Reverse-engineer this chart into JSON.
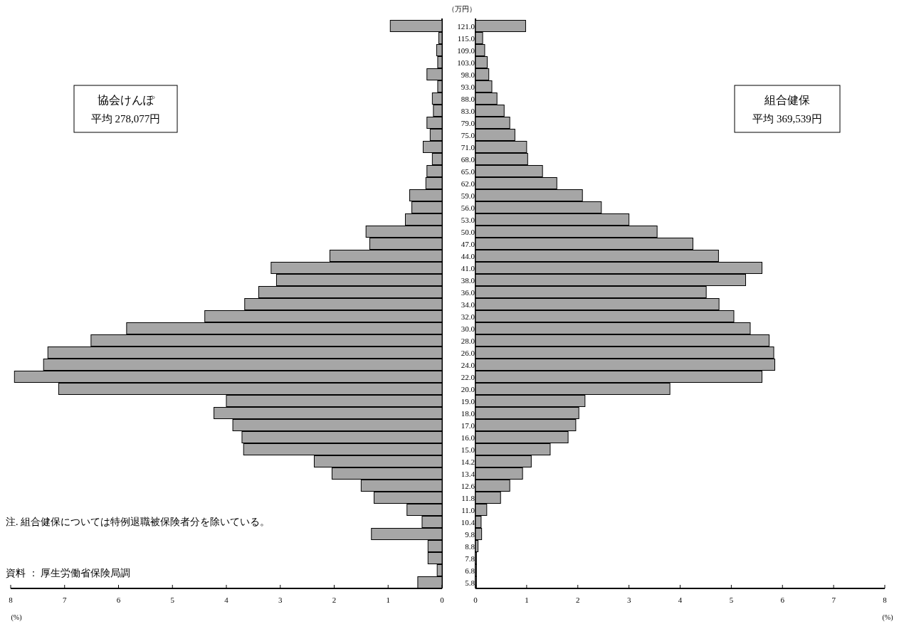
{
  "chart_data": [
    {
      "type": "bar",
      "orientation": "horizontal",
      "title": "協会けんぽ",
      "subtitle": "平均 278,077円",
      "ylabel": "（万円）",
      "xlabel": "(%)",
      "categories": [
        "121.0",
        "115.0",
        "109.0",
        "103.0",
        "98.0",
        "93.0",
        "88.0",
        "83.0",
        "79.0",
        "75.0",
        "71.0",
        "68.0",
        "65.0",
        "62.0",
        "59.0",
        "56.0",
        "53.0",
        "50.0",
        "47.0",
        "44.0",
        "41.0",
        "38.0",
        "36.0",
        "34.0",
        "32.0",
        "30.0",
        "28.0",
        "26.0",
        "24.0",
        "22.0",
        "20.0",
        "19.0",
        "18.0",
        "17.0",
        "16.0",
        "15.0",
        "14.2",
        "13.4",
        "12.6",
        "11.8",
        "11.0",
        "10.4",
        "9.8",
        "8.8",
        "7.8",
        "6.8",
        "5.8"
      ],
      "series": [
        {
          "color": "#a6a6a6",
          "values": [
            0.96,
            0.06,
            0.1,
            0.08,
            0.28,
            0.08,
            0.18,
            0.16,
            0.28,
            0.22,
            0.35,
            0.18,
            0.28,
            0.3,
            0.6,
            0.56,
            0.68,
            1.41,
            1.34,
            2.08,
            3.17,
            3.07,
            3.4,
            3.66,
            4.4,
            5.85,
            6.51,
            7.31,
            7.39,
            7.93,
            7.11,
            4.0,
            4.23,
            3.88,
            3.71,
            3.68,
            2.37,
            2.04,
            1.5,
            1.26,
            0.65,
            0.37,
            1.31,
            0.26,
            0.26,
            0.09,
            0.45
          ]
        }
      ],
      "xlim": [
        8,
        0
      ],
      "xticks": [
        8,
        7,
        6,
        5,
        4,
        3,
        2,
        1,
        0
      ],
      "annotations": [
        "注. 組合健保については特例退職被保険者分を除いている。",
        "資料 ： 厚生労働省保険局調"
      ]
    },
    {
      "type": "bar",
      "orientation": "horizontal",
      "title": "組合健保",
      "subtitle": "平均 369,539円",
      "xlabel": "(%)",
      "tick_labels": "x",
      "categories": [
        null,
        null,
        null,
        null,
        null,
        null,
        null,
        null,
        null,
        null,
        null,
        null,
        null,
        null,
        null,
        null,
        null,
        null,
        null,
        null,
        null,
        null,
        null,
        null,
        null,
        null,
        null,
        null,
        null,
        null,
        null,
        null,
        null,
        null,
        null,
        null,
        null,
        null,
        null,
        null,
        null,
        null,
        null,
        null,
        null,
        null,
        null
      ],
      "series": [
        {
          "color": "#a6a6a6",
          "values": [
            0.98,
            0.14,
            0.18,
            0.23,
            0.26,
            0.32,
            0.42,
            0.56,
            0.67,
            0.77,
            1.0,
            1.02,
            1.31,
            1.59,
            2.09,
            2.46,
            3.0,
            3.55,
            4.25,
            4.75,
            5.6,
            5.28,
            4.51,
            4.76,
            5.05,
            5.37,
            5.74,
            5.83,
            5.85,
            5.6,
            3.8,
            2.14,
            2.02,
            1.96,
            1.81,
            1.46,
            1.09,
            0.92,
            0.67,
            0.49,
            0.22,
            0.11,
            0.12,
            0.05,
            0.02,
            0.02,
            0.02
          ]
        }
      ],
      "xlim": [
        0,
        8
      ],
      "xticks": [
        0,
        1,
        2,
        3,
        4,
        5,
        6,
        7,
        8
      ]
    }
  ]
}
